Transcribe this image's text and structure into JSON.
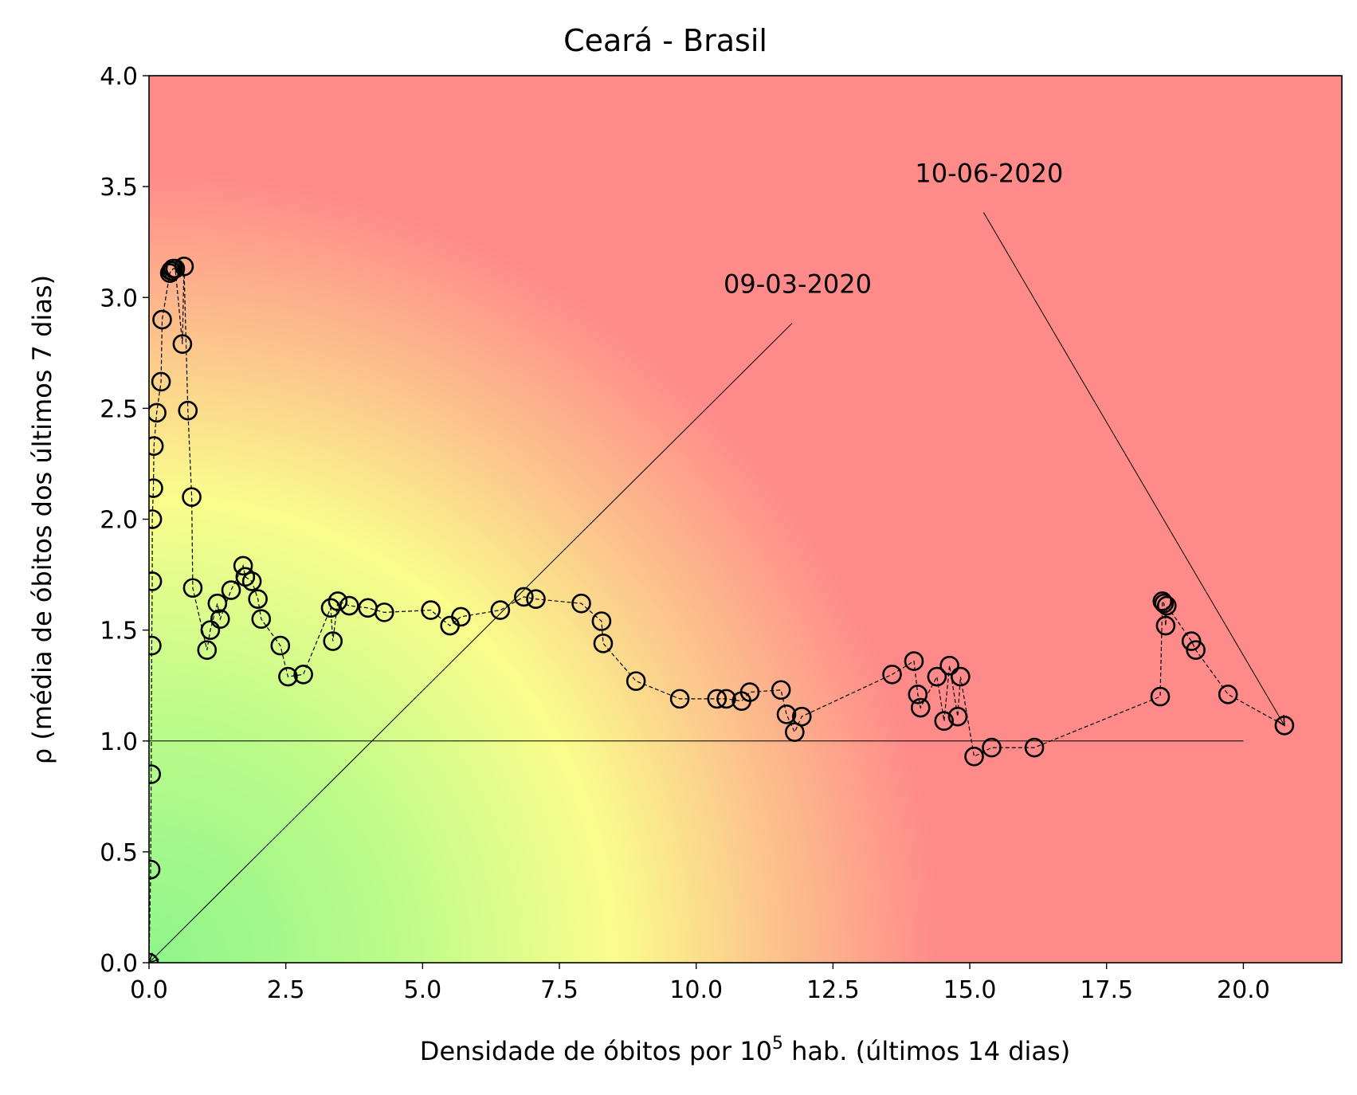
{
  "chart_data": {
    "type": "scatter",
    "title": "Ceará - Brasil",
    "xlabel_main": "Densidade de óbitos por 10",
    "xlabel_sup": "5",
    "xlabel_rest": " hab. (últimos 14 dias)",
    "ylabel": "ρ (média de óbitos dos últimos 7 dias)",
    "xlim": [
      0,
      21.8
    ],
    "ylim": [
      0,
      4.0
    ],
    "x_ticks": [
      0.0,
      2.5,
      5.0,
      7.5,
      10.0,
      12.5,
      15.0,
      17.5,
      20.0
    ],
    "x_tick_labels": [
      "0.0",
      "2.5",
      "5.0",
      "7.5",
      "10.0",
      "12.5",
      "15.0",
      "17.5",
      "20.0"
    ],
    "y_ticks": [
      0.0,
      0.5,
      1.0,
      1.5,
      2.0,
      2.5,
      3.0,
      3.5,
      4.0
    ],
    "y_tick_labels": [
      "0.0",
      "0.5",
      "1.0",
      "1.5",
      "2.0",
      "2.5",
      "3.0",
      "3.5",
      "4.0"
    ],
    "grid": false,
    "background": "risk gradient: green (low density, low ρ) through yellow to red (high density / high ρ)",
    "background_colors": {
      "green": "#8ef58a",
      "yellow": "#fafd8c",
      "orange": "#fcbc8c",
      "red": "#ff8a8a"
    },
    "reference_line": {
      "y": 1.0,
      "x_from": 0.0,
      "x_to": 20.0,
      "color": "#000000"
    },
    "marker": {
      "shape": "open circle",
      "edge": "#000000",
      "line_style": "dashed"
    },
    "series": [
      {
        "x": [
          0.0,
          0.03,
          0.04,
          0.05,
          0.06,
          0.06,
          0.08,
          0.09,
          0.14,
          0.22,
          0.24,
          0.38,
          0.4,
          0.42,
          0.44,
          0.48,
          0.61,
          0.64,
          0.71,
          0.78,
          0.8,
          1.06,
          1.12,
          1.25,
          1.3,
          1.5,
          1.72,
          1.76,
          1.88,
          1.99,
          2.05,
          2.4,
          2.54,
          2.82,
          3.32,
          3.36,
          3.45,
          3.66,
          4.0,
          4.3,
          5.15,
          5.5,
          5.7,
          6.42,
          6.85,
          7.07,
          7.9,
          8.27,
          8.3,
          8.9,
          9.7,
          10.38,
          10.55,
          10.83,
          10.98,
          11.55,
          11.65,
          11.8,
          11.93,
          13.58,
          13.98,
          14.05,
          14.1,
          14.4,
          14.53,
          14.63,
          14.78,
          14.83,
          15.08,
          15.4,
          16.18,
          18.48,
          18.52,
          18.55,
          18.58,
          18.6,
          19.05,
          19.13,
          19.72,
          20.75
        ],
        "y": [
          0.0,
          0.42,
          0.85,
          1.43,
          1.72,
          2.0,
          2.14,
          2.33,
          2.48,
          2.62,
          2.9,
          3.11,
          3.12,
          3.12,
          3.13,
          3.13,
          2.79,
          3.14,
          2.49,
          2.1,
          1.69,
          1.41,
          1.5,
          1.62,
          1.55,
          1.68,
          1.79,
          1.74,
          1.72,
          1.64,
          1.55,
          1.43,
          1.29,
          1.3,
          1.6,
          1.45,
          1.63,
          1.61,
          1.6,
          1.58,
          1.59,
          1.52,
          1.56,
          1.59,
          1.65,
          1.64,
          1.62,
          1.54,
          1.44,
          1.27,
          1.19,
          1.19,
          1.19,
          1.18,
          1.22,
          1.23,
          1.12,
          1.04,
          1.11,
          1.3,
          1.36,
          1.21,
          1.15,
          1.29,
          1.09,
          1.34,
          1.11,
          1.29,
          0.93,
          0.97,
          0.97,
          1.2,
          1.63,
          1.62,
          1.52,
          1.61,
          1.45,
          1.41,
          1.21,
          1.07
        ]
      }
    ],
    "annotations": [
      {
        "text": "09-03-2020",
        "text_x": 10.5,
        "text_y": 3.02,
        "point_x": 0.0,
        "point_y": 0.0
      },
      {
        "text": "10-06-2020",
        "text_x": 14.0,
        "text_y": 3.52,
        "point_x": 20.75,
        "point_y": 1.07
      }
    ]
  }
}
